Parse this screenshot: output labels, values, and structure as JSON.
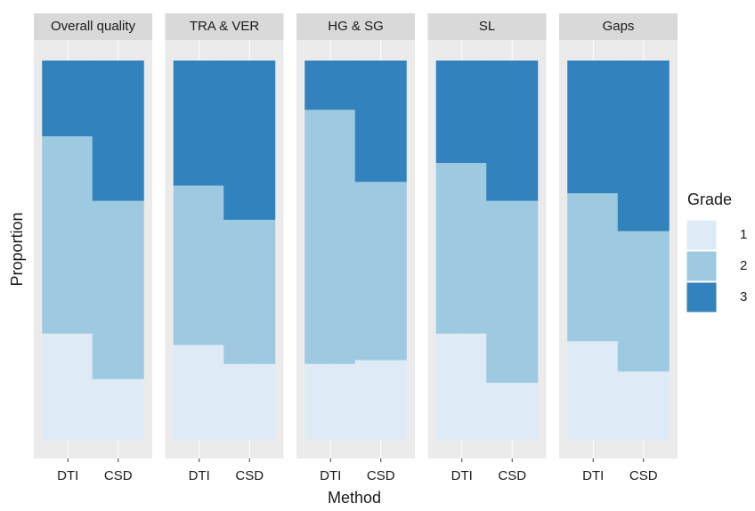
{
  "chart_data": {
    "type": "bar",
    "stacked": true,
    "xlabel": "Method",
    "ylabel": "Proportion",
    "legend_title": "Grade",
    "ylim": [
      0,
      1
    ],
    "facets": [
      {
        "title": "Overall quality",
        "categories": [
          "DTI",
          "CSD"
        ],
        "series": [
          {
            "name": "1",
            "color": "#deebf7",
            "values": [
              0.28,
              0.16
            ]
          },
          {
            "name": "2",
            "color": "#9ecae1",
            "values": [
              0.52,
              0.47
            ]
          },
          {
            "name": "3",
            "color": "#3182bd",
            "values": [
              0.2,
              0.37
            ]
          }
        ]
      },
      {
        "title": "TRA & VER",
        "categories": [
          "DTI",
          "CSD"
        ],
        "series": [
          {
            "name": "1",
            "color": "#deebf7",
            "values": [
              0.25,
              0.2
            ]
          },
          {
            "name": "2",
            "color": "#9ecae1",
            "values": [
              0.42,
              0.38
            ]
          },
          {
            "name": "3",
            "color": "#3182bd",
            "values": [
              0.33,
              0.42
            ]
          }
        ]
      },
      {
        "title": "HG & SG",
        "categories": [
          "DTI",
          "CSD"
        ],
        "series": [
          {
            "name": "1",
            "color": "#deebf7",
            "values": [
              0.2,
              0.21
            ]
          },
          {
            "name": "2",
            "color": "#9ecae1",
            "values": [
              0.67,
              0.47
            ]
          },
          {
            "name": "3",
            "color": "#3182bd",
            "values": [
              0.13,
              0.32
            ]
          }
        ]
      },
      {
        "title": "SL",
        "categories": [
          "DTI",
          "CSD"
        ],
        "series": [
          {
            "name": "1",
            "color": "#deebf7",
            "values": [
              0.28,
              0.15
            ]
          },
          {
            "name": "2",
            "color": "#9ecae1",
            "values": [
              0.45,
              0.48
            ]
          },
          {
            "name": "3",
            "color": "#3182bd",
            "values": [
              0.27,
              0.37
            ]
          }
        ]
      },
      {
        "title": "Gaps",
        "categories": [
          "DTI",
          "CSD"
        ],
        "series": [
          {
            "name": "1",
            "color": "#deebf7",
            "values": [
              0.26,
              0.18
            ]
          },
          {
            "name": "2",
            "color": "#9ecae1",
            "values": [
              0.39,
              0.37
            ]
          },
          {
            "name": "3",
            "color": "#3182bd",
            "values": [
              0.35,
              0.45
            ]
          }
        ]
      }
    ]
  }
}
